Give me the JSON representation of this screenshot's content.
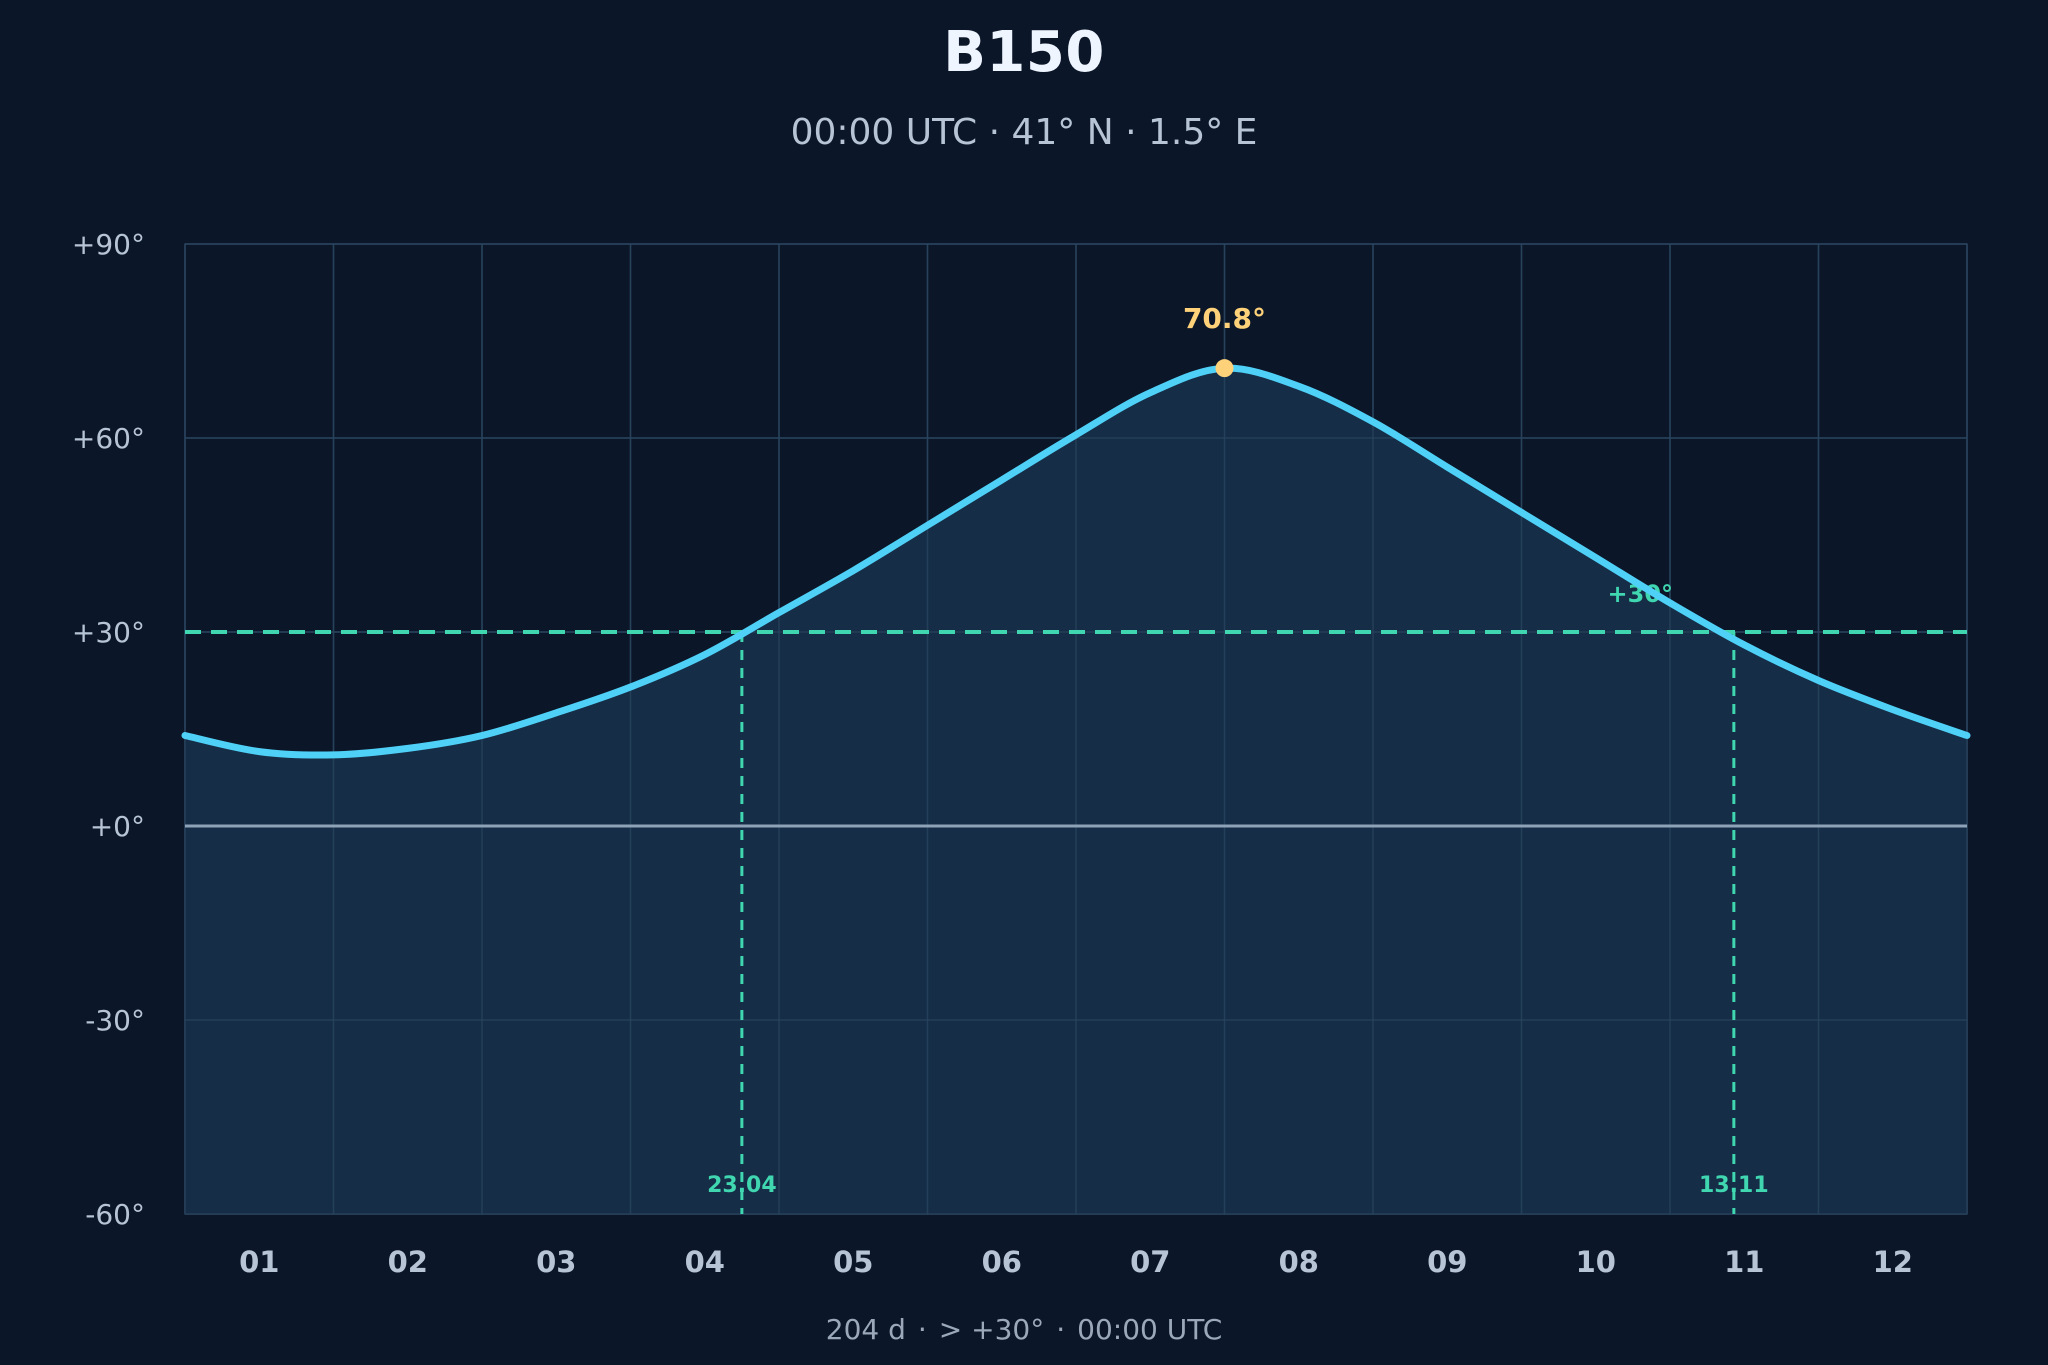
{
  "header": {
    "title": "B150",
    "subtitle": "00:00 UTC · 41° N · 1.5° E"
  },
  "footer": {
    "days_text": "204 d",
    "separator": "·",
    "threshold_text": "> +30°",
    "time_text": "00:00 UTC"
  },
  "colors": {
    "background": "#0b1628",
    "curve": "#4fd0f7",
    "fill": "#16304a",
    "threshold": "#3fd6b0",
    "peak": "#ffd27a",
    "horizon": "#8ea3b8",
    "grid": "#243a52",
    "tick_text": "#b6c4d6"
  },
  "chart_data": {
    "type": "area",
    "title": "B150",
    "subtitle": "00:00 UTC · 41° N · 1.5° E",
    "xlabel": "",
    "ylabel": "",
    "x_ticks": [
      "01",
      "02",
      "03",
      "04",
      "05",
      "06",
      "07",
      "08",
      "09",
      "10",
      "11",
      "12"
    ],
    "y_ticks": [
      "+90°",
      "+60°",
      "+30°",
      "+0°",
      "-30°",
      "-60°"
    ],
    "y_tick_values": [
      90,
      60,
      30,
      0,
      -30,
      -60
    ],
    "ylim": [
      -60,
      90
    ],
    "xlim_months": [
      0.5,
      12.5
    ],
    "grid": true,
    "series": [
      {
        "x_month": [
          0.5,
          1.0,
          1.5,
          2.0,
          2.5,
          3.0,
          3.5,
          4.0,
          4.5,
          5.0,
          5.5,
          6.0,
          6.5,
          7.0,
          7.5,
          8.0,
          8.5,
          9.0,
          9.5,
          10.0,
          10.5,
          11.0,
          11.5,
          12.0,
          12.5
        ],
        "values": [
          14,
          11.5,
          11,
          12,
          14,
          17.5,
          21.5,
          26.5,
          33,
          39.5,
          46.5,
          53.5,
          60.5,
          67,
          70.8,
          68,
          62.5,
          55.5,
          48.5,
          41.5,
          34.5,
          28,
          22.5,
          18,
          14
        ]
      }
    ],
    "threshold": {
      "value": 30,
      "label": "+30°"
    },
    "peak": {
      "x_month": 7.5,
      "value": 70.8,
      "label": "70.8°"
    },
    "crossings": [
      {
        "x_month": 4.25,
        "label": "23.04"
      },
      {
        "x_month": 10.93,
        "label": "13.11"
      }
    ]
  }
}
